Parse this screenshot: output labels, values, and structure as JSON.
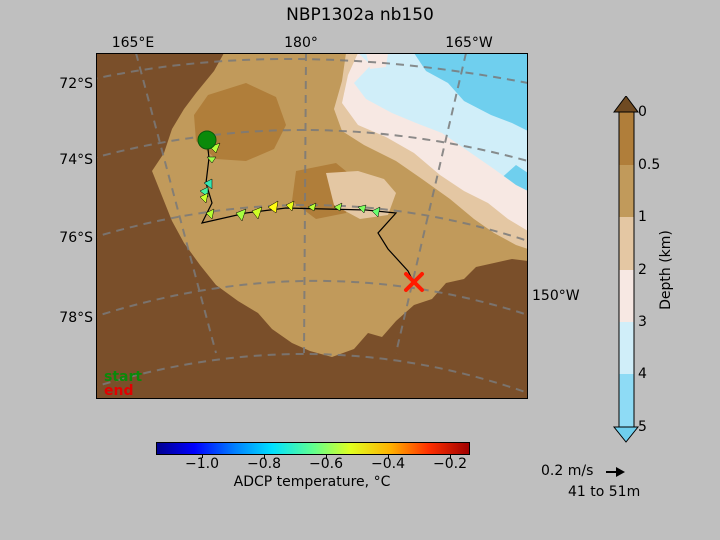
{
  "title": "NBP1302a nb150",
  "map": {
    "lon_labels": [
      "165°E",
      "180°",
      "165°W"
    ],
    "lat_labels": [
      "72°S",
      "74°S",
      "76°S",
      "78°S"
    ],
    "side_lon_label": "150°W",
    "legend": {
      "start": "start",
      "end": "end",
      "start_color": "#0a8a0a",
      "end_color": "#e00000"
    }
  },
  "depth_colorbar": {
    "label": "Depth (km)",
    "ticks": [
      "0",
      "0.5",
      "1",
      "2",
      "3",
      "4",
      "5"
    ],
    "colors": [
      "#6f4a22",
      "#b07e3a",
      "#c19a5b",
      "#e4c7a3",
      "#f7e8e3",
      "#d0eef9",
      "#8edbf5",
      "#6fcfee"
    ]
  },
  "temp_colorbar": {
    "label": "ADCP temperature, °C",
    "ticks": [
      "−1.0",
      "−0.8",
      "−0.6",
      "−0.4",
      "−0.2"
    ],
    "range": [
      -1.15,
      -0.15
    ]
  },
  "quiver_key": {
    "speed": "0.2 m/s",
    "depth_range": "41 to 51m"
  }
}
